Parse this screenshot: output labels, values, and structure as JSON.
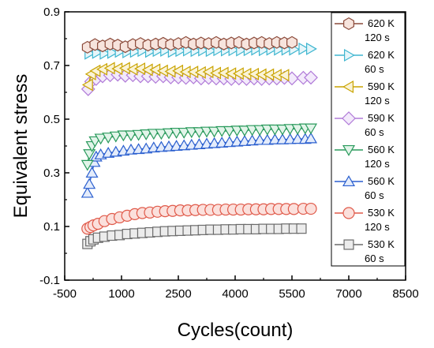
{
  "chart_data": {
    "type": "scatter",
    "title": "",
    "xlabel": "Cycles(count)",
    "ylabel": "Equivalent stress",
    "xlim": [
      -500,
      8500
    ],
    "ylim": [
      -0.1,
      0.9
    ],
    "xticks": [
      "-500",
      "1000",
      "2500",
      "4000",
      "5500",
      "7000",
      "8500"
    ],
    "yticks": [
      "-0.1",
      "0.1",
      "0.3",
      "0.5",
      "0.7",
      "0.9"
    ],
    "grid": false,
    "legend_position": "right",
    "series": [
      {
        "name_line1": "620 K",
        "name_line2": "120 s",
        "marker": "hexagon",
        "color": "#8b4a3a",
        "fill": "#f7e4dd",
        "points": [
          [
            100,
            0.768
          ],
          [
            300,
            0.778
          ],
          [
            500,
            0.773
          ],
          [
            700,
            0.78
          ],
          [
            900,
            0.776
          ],
          [
            1100,
            0.77
          ],
          [
            1300,
            0.778
          ],
          [
            1500,
            0.782
          ],
          [
            1700,
            0.776
          ],
          [
            1900,
            0.78
          ],
          [
            2100,
            0.783
          ],
          [
            2300,
            0.778
          ],
          [
            2500,
            0.782
          ],
          [
            2700,
            0.786
          ],
          [
            2900,
            0.78
          ],
          [
            3100,
            0.784
          ],
          [
            3300,
            0.782
          ],
          [
            3500,
            0.786
          ],
          [
            3700,
            0.78
          ],
          [
            3900,
            0.784
          ],
          [
            4100,
            0.786
          ],
          [
            4300,
            0.78
          ],
          [
            4500,
            0.784
          ],
          [
            4700,
            0.786
          ],
          [
            4900,
            0.782
          ],
          [
            5100,
            0.786
          ],
          [
            5300,
            0.784
          ],
          [
            5500,
            0.786
          ]
        ]
      },
      {
        "name_line1": "620 K",
        "name_line2": "60 s",
        "marker": "triangle-right",
        "color": "#3fb6d0",
        "fill": "#e6f6fa",
        "points": [
          [
            150,
            0.745
          ],
          [
            350,
            0.748
          ],
          [
            550,
            0.745
          ],
          [
            750,
            0.748
          ],
          [
            950,
            0.752
          ],
          [
            1150,
            0.75
          ],
          [
            1350,
            0.752
          ],
          [
            1550,
            0.755
          ],
          [
            1750,
            0.752
          ],
          [
            1950,
            0.755
          ],
          [
            2150,
            0.756
          ],
          [
            2350,
            0.752
          ],
          [
            2550,
            0.755
          ],
          [
            2750,
            0.757
          ],
          [
            2950,
            0.755
          ],
          [
            3150,
            0.757
          ],
          [
            3350,
            0.755
          ],
          [
            3550,
            0.758
          ],
          [
            3750,
            0.757
          ],
          [
            3950,
            0.758
          ],
          [
            4150,
            0.757
          ],
          [
            4350,
            0.758
          ],
          [
            4550,
            0.76
          ],
          [
            4750,
            0.758
          ],
          [
            4950,
            0.76
          ],
          [
            5150,
            0.76
          ],
          [
            5350,
            0.76
          ],
          [
            5550,
            0.76
          ],
          [
            5800,
            0.762
          ],
          [
            6000,
            0.762
          ]
        ]
      },
      {
        "name_line1": "590 K",
        "name_line2": "120 s",
        "marker": "triangle-left",
        "color": "#c9a300",
        "fill": "#faf3d6",
        "points": [
          [
            120,
            0.628
          ],
          [
            200,
            0.668
          ],
          [
            320,
            0.68
          ],
          [
            500,
            0.686
          ],
          [
            700,
            0.69
          ],
          [
            900,
            0.688
          ],
          [
            1100,
            0.69
          ],
          [
            1300,
            0.686
          ],
          [
            1500,
            0.688
          ],
          [
            1700,
            0.684
          ],
          [
            1900,
            0.684
          ],
          [
            2100,
            0.68
          ],
          [
            2300,
            0.678
          ],
          [
            2500,
            0.68
          ],
          [
            2700,
            0.676
          ],
          [
            2900,
            0.676
          ],
          [
            3100,
            0.674
          ],
          [
            3300,
            0.676
          ],
          [
            3500,
            0.672
          ],
          [
            3700,
            0.672
          ],
          [
            3900,
            0.67
          ],
          [
            4100,
            0.67
          ],
          [
            4300,
            0.668
          ],
          [
            4500,
            0.668
          ],
          [
            4700,
            0.666
          ],
          [
            4900,
            0.666
          ],
          [
            5100,
            0.664
          ],
          [
            5300,
            0.664
          ]
        ]
      },
      {
        "name_line1": "590 K",
        "name_line2": "60 s",
        "marker": "diamond",
        "color": "#b07ad8",
        "fill": "#f3eafb",
        "points": [
          [
            120,
            0.612
          ],
          [
            200,
            0.64
          ],
          [
            330,
            0.65
          ],
          [
            500,
            0.66
          ],
          [
            700,
            0.664
          ],
          [
            900,
            0.666
          ],
          [
            1100,
            0.662
          ],
          [
            1300,
            0.664
          ],
          [
            1500,
            0.66
          ],
          [
            1700,
            0.66
          ],
          [
            1900,
            0.658
          ],
          [
            2100,
            0.66
          ],
          [
            2300,
            0.656
          ],
          [
            2500,
            0.656
          ],
          [
            2700,
            0.654
          ],
          [
            2900,
            0.656
          ],
          [
            3100,
            0.652
          ],
          [
            3300,
            0.654
          ],
          [
            3500,
            0.652
          ],
          [
            3700,
            0.652
          ],
          [
            3900,
            0.65
          ],
          [
            4100,
            0.652
          ],
          [
            4300,
            0.65
          ],
          [
            4500,
            0.652
          ],
          [
            4700,
            0.65
          ],
          [
            4900,
            0.652
          ],
          [
            5100,
            0.652
          ],
          [
            5300,
            0.654
          ],
          [
            5500,
            0.652
          ],
          [
            5800,
            0.654
          ],
          [
            6000,
            0.655
          ]
        ]
      },
      {
        "name_line1": "560 K",
        "name_line2": "120 s",
        "marker": "triangle-down",
        "color": "#2a9a5c",
        "fill": "#e2f4e9",
        "points": [
          [
            100,
            0.33
          ],
          [
            150,
            0.37
          ],
          [
            220,
            0.4
          ],
          [
            300,
            0.418
          ],
          [
            450,
            0.428
          ],
          [
            650,
            0.432
          ],
          [
            850,
            0.436
          ],
          [
            1050,
            0.44
          ],
          [
            1250,
            0.44
          ],
          [
            1450,
            0.442
          ],
          [
            1650,
            0.444
          ],
          [
            1850,
            0.446
          ],
          [
            2050,
            0.446
          ],
          [
            2250,
            0.448
          ],
          [
            2450,
            0.45
          ],
          [
            2650,
            0.45
          ],
          [
            2850,
            0.452
          ],
          [
            3050,
            0.452
          ],
          [
            3250,
            0.454
          ],
          [
            3450,
            0.454
          ],
          [
            3650,
            0.456
          ],
          [
            3850,
            0.456
          ],
          [
            4050,
            0.458
          ],
          [
            4250,
            0.458
          ],
          [
            4450,
            0.46
          ],
          [
            4650,
            0.46
          ],
          [
            4850,
            0.462
          ],
          [
            5050,
            0.462
          ],
          [
            5250,
            0.462
          ],
          [
            5450,
            0.464
          ],
          [
            5650,
            0.464
          ],
          [
            5850,
            0.466
          ],
          [
            6000,
            0.466
          ]
        ]
      },
      {
        "name_line1": "560 K",
        "name_line2": "60 s",
        "marker": "triangle-up",
        "color": "#2a5fcf",
        "fill": "#e4ecfb",
        "points": [
          [
            100,
            0.225
          ],
          [
            150,
            0.258
          ],
          [
            220,
            0.3
          ],
          [
            280,
            0.34
          ],
          [
            330,
            0.36
          ],
          [
            450,
            0.368
          ],
          [
            650,
            0.374
          ],
          [
            850,
            0.378
          ],
          [
            1050,
            0.382
          ],
          [
            1250,
            0.386
          ],
          [
            1450,
            0.388
          ],
          [
            1650,
            0.39
          ],
          [
            1850,
            0.394
          ],
          [
            2050,
            0.396
          ],
          [
            2250,
            0.398
          ],
          [
            2450,
            0.4
          ],
          [
            2650,
            0.402
          ],
          [
            2850,
            0.404
          ],
          [
            3050,
            0.406
          ],
          [
            3250,
            0.408
          ],
          [
            3450,
            0.41
          ],
          [
            3650,
            0.412
          ],
          [
            3850,
            0.414
          ],
          [
            4050,
            0.416
          ],
          [
            4250,
            0.418
          ],
          [
            4450,
            0.42
          ],
          [
            4650,
            0.422
          ],
          [
            4850,
            0.422
          ],
          [
            5050,
            0.424
          ],
          [
            5250,
            0.424
          ],
          [
            5450,
            0.425
          ],
          [
            5650,
            0.426
          ],
          [
            5850,
            0.426
          ],
          [
            6000,
            0.428
          ]
        ]
      },
      {
        "name_line1": "530 K",
        "name_line2": "120 s",
        "marker": "circle",
        "color": "#e05a4a",
        "fill": "#fbe0dc",
        "points": [
          [
            100,
            0.092
          ],
          [
            180,
            0.098
          ],
          [
            260,
            0.104
          ],
          [
            380,
            0.11
          ],
          [
            550,
            0.12
          ],
          [
            750,
            0.128
          ],
          [
            950,
            0.134
          ],
          [
            1150,
            0.14
          ],
          [
            1350,
            0.146
          ],
          [
            1550,
            0.15
          ],
          [
            1750,
            0.152
          ],
          [
            1950,
            0.155
          ],
          [
            2150,
            0.157
          ],
          [
            2350,
            0.158
          ],
          [
            2550,
            0.16
          ],
          [
            2750,
            0.16
          ],
          [
            2950,
            0.161
          ],
          [
            3150,
            0.162
          ],
          [
            3350,
            0.162
          ],
          [
            3550,
            0.162
          ],
          [
            3750,
            0.163
          ],
          [
            3950,
            0.163
          ],
          [
            4150,
            0.163
          ],
          [
            4350,
            0.164
          ],
          [
            4550,
            0.164
          ],
          [
            4750,
            0.164
          ],
          [
            4950,
            0.165
          ],
          [
            5150,
            0.165
          ],
          [
            5350,
            0.165
          ],
          [
            5550,
            0.165
          ],
          [
            5800,
            0.166
          ],
          [
            6000,
            0.166
          ]
        ]
      },
      {
        "name_line1": "530 K",
        "name_line2": "60 s",
        "marker": "square",
        "color": "#6b6b6b",
        "fill": "#ececec",
        "points": [
          [
            100,
            0.035
          ],
          [
            180,
            0.045
          ],
          [
            260,
            0.052
          ],
          [
            380,
            0.058
          ],
          [
            550,
            0.062
          ],
          [
            750,
            0.066
          ],
          [
            950,
            0.068
          ],
          [
            1150,
            0.072
          ],
          [
            1350,
            0.074
          ],
          [
            1550,
            0.076
          ],
          [
            1750,
            0.078
          ],
          [
            1950,
            0.08
          ],
          [
            2150,
            0.082
          ],
          [
            2350,
            0.083
          ],
          [
            2550,
            0.084
          ],
          [
            2750,
            0.085
          ],
          [
            2950,
            0.086
          ],
          [
            3150,
            0.087
          ],
          [
            3350,
            0.088
          ],
          [
            3550,
            0.088
          ],
          [
            3750,
            0.089
          ],
          [
            3950,
            0.089
          ],
          [
            4150,
            0.09
          ],
          [
            4350,
            0.09
          ],
          [
            4550,
            0.09
          ],
          [
            4750,
            0.091
          ],
          [
            4950,
            0.091
          ],
          [
            5150,
            0.091
          ],
          [
            5350,
            0.092
          ],
          [
            5550,
            0.092
          ],
          [
            5750,
            0.092
          ]
        ]
      }
    ]
  }
}
